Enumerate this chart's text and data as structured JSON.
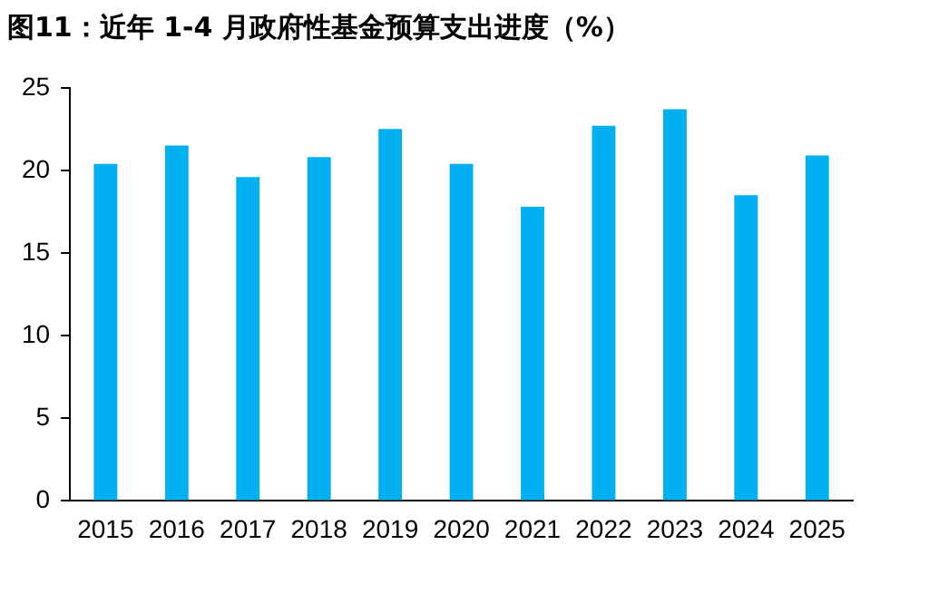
{
  "chart_data": {
    "type": "bar",
    "title": "图11：近年 1-4 月政府性基金预算支出进度（%）",
    "categories": [
      "2015",
      "2016",
      "2017",
      "2018",
      "2019",
      "2020",
      "2021",
      "2022",
      "2023",
      "2024",
      "2025"
    ],
    "values": [
      20.4,
      21.5,
      19.6,
      20.8,
      22.5,
      20.4,
      17.8,
      22.7,
      23.7,
      18.5,
      20.9
    ],
    "color": "#00b0f0",
    "ylim": [
      0,
      25
    ],
    "yticks": [
      0,
      5,
      10,
      15,
      20,
      25
    ],
    "grid": false,
    "legend": false
  }
}
